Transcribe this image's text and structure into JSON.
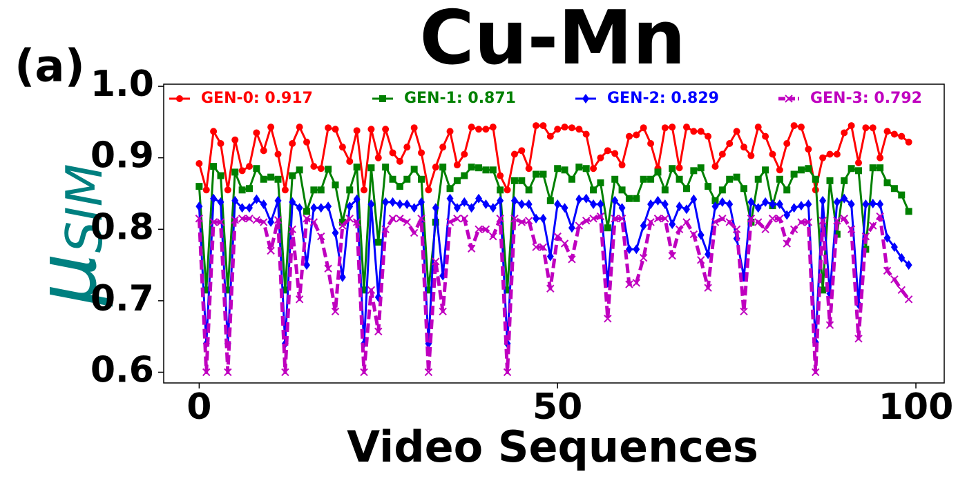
{
  "chart_data": {
    "type": "line",
    "title": "Cu-Mn",
    "panel_label": "(a)",
    "xlabel": "Video Sequences",
    "ylabel": {
      "symbol": "μ",
      "subscript": "SIM",
      "color": "#008080"
    },
    "x": [
      0,
      1,
      2,
      3,
      4,
      5,
      6,
      7,
      8,
      9,
      10,
      11,
      12,
      13,
      14,
      15,
      16,
      17,
      18,
      19,
      20,
      21,
      22,
      23,
      24,
      25,
      26,
      27,
      28,
      29,
      30,
      31,
      32,
      33,
      34,
      35,
      36,
      37,
      38,
      39,
      40,
      41,
      42,
      43,
      44,
      45,
      46,
      47,
      48,
      49,
      50,
      51,
      52,
      53,
      54,
      55,
      56,
      57,
      58,
      59,
      60,
      61,
      62,
      63,
      64,
      65,
      66,
      67,
      68,
      69,
      70,
      71,
      72,
      73,
      74,
      75,
      76,
      77,
      78,
      79,
      80,
      81,
      82,
      83,
      84,
      85,
      86,
      87,
      88,
      89,
      90,
      91,
      92,
      93,
      94,
      95,
      96,
      97,
      98,
      99
    ],
    "xlim": [
      -4.95,
      103.95
    ],
    "xticks": [
      0,
      50,
      100
    ],
    "ylim": [
      0.585,
      1.003
    ],
    "yticks": [
      0.6,
      0.7,
      0.8,
      0.9,
      {
        "value": 1.0,
        "label": "1.0"
      }
    ],
    "series": [
      {
        "name": "GEN-0: 0.917",
        "color": "#ff0000",
        "marker": "circle",
        "dashed": false,
        "values": [
          0.892,
          0.855,
          0.937,
          0.92,
          0.855,
          0.925,
          0.882,
          0.888,
          0.935,
          0.91,
          0.943,
          0.905,
          0.855,
          0.92,
          0.943,
          0.922,
          0.888,
          0.885,
          0.942,
          0.94,
          0.915,
          0.895,
          0.938,
          0.855,
          0.94,
          0.9,
          0.94,
          0.907,
          0.895,
          0.915,
          0.942,
          0.907,
          0.855,
          0.887,
          0.915,
          0.937,
          0.89,
          0.905,
          0.943,
          0.94,
          0.94,
          0.943,
          0.875,
          0.855,
          0.905,
          0.91,
          0.885,
          0.945,
          0.945,
          0.93,
          0.94,
          0.943,
          0.942,
          0.94,
          0.933,
          0.885,
          0.9,
          0.91,
          0.906,
          0.89,
          0.93,
          0.932,
          0.942,
          0.92,
          0.885,
          0.942,
          0.943,
          0.886,
          0.943,
          0.937,
          0.937,
          0.93,
          0.888,
          0.905,
          0.92,
          0.937,
          0.915,
          0.903,
          0.943,
          0.93,
          0.905,
          0.883,
          0.92,
          0.945,
          0.943,
          0.912,
          0.855,
          0.9,
          0.905,
          0.905,
          0.935,
          0.945,
          0.893,
          0.942,
          0.942,
          0.9,
          0.937,
          0.933,
          0.93,
          0.922
        ]
      },
      {
        "name": "GEN-1: 0.871",
        "color": "#008000",
        "marker": "square",
        "dashed": false,
        "values": [
          0.86,
          0.715,
          0.888,
          0.875,
          0.715,
          0.88,
          0.855,
          0.857,
          0.885,
          0.87,
          0.873,
          0.87,
          0.715,
          0.875,
          0.883,
          0.825,
          0.855,
          0.855,
          0.884,
          0.862,
          0.81,
          0.855,
          0.887,
          0.715,
          0.886,
          0.782,
          0.887,
          0.87,
          0.86,
          0.87,
          0.884,
          0.87,
          0.715,
          0.81,
          0.887,
          0.857,
          0.868,
          0.875,
          0.887,
          0.886,
          0.883,
          0.883,
          0.855,
          0.715,
          0.868,
          0.868,
          0.855,
          0.877,
          0.877,
          0.84,
          0.885,
          0.883,
          0.87,
          0.887,
          0.885,
          0.855,
          0.865,
          0.802,
          0.87,
          0.855,
          0.843,
          0.843,
          0.87,
          0.87,
          0.88,
          0.855,
          0.885,
          0.87,
          0.857,
          0.882,
          0.886,
          0.86,
          0.84,
          0.855,
          0.87,
          0.873,
          0.857,
          0.81,
          0.87,
          0.883,
          0.833,
          0.87,
          0.855,
          0.877,
          0.883,
          0.885,
          0.87,
          0.715,
          0.868,
          0.793,
          0.868,
          0.885,
          0.882,
          0.772,
          0.886,
          0.886,
          0.865,
          0.857,
          0.848,
          0.825
        ]
      },
      {
        "name": "GEN-2: 0.829",
        "color": "#0000ff",
        "marker": "diamond",
        "dashed": false,
        "values": [
          0.832,
          0.64,
          0.843,
          0.838,
          0.64,
          0.84,
          0.83,
          0.83,
          0.842,
          0.835,
          0.81,
          0.84,
          0.64,
          0.838,
          0.83,
          0.75,
          0.83,
          0.83,
          0.832,
          0.795,
          0.733,
          0.832,
          0.842,
          0.64,
          0.835,
          0.705,
          0.838,
          0.838,
          0.835,
          0.835,
          0.83,
          0.838,
          0.64,
          0.83,
          0.735,
          0.843,
          0.83,
          0.838,
          0.83,
          0.843,
          0.835,
          0.83,
          0.84,
          0.64,
          0.84,
          0.835,
          0.835,
          0.815,
          0.815,
          0.762,
          0.835,
          0.83,
          0.802,
          0.842,
          0.843,
          0.835,
          0.835,
          0.725,
          0.84,
          0.83,
          0.772,
          0.772,
          0.805,
          0.835,
          0.84,
          0.835,
          0.807,
          0.832,
          0.828,
          0.842,
          0.792,
          0.765,
          0.832,
          0.838,
          0.835,
          0.787,
          0.733,
          0.838,
          0.83,
          0.838,
          0.835,
          0.835,
          0.82,
          0.83,
          0.833,
          0.835,
          0.642,
          0.84,
          0.71,
          0.838,
          0.843,
          0.835,
          0.695,
          0.835,
          0.836,
          0.835,
          0.788,
          0.775,
          0.76,
          0.75
        ]
      },
      {
        "name": "GEN-3: 0.792",
        "color": "#bf00bf",
        "marker": "x",
        "dashed": true,
        "values": [
          0.815,
          0.6,
          0.81,
          0.81,
          0.6,
          0.813,
          0.815,
          0.815,
          0.813,
          0.81,
          0.77,
          0.813,
          0.6,
          0.8,
          0.702,
          0.815,
          0.81,
          0.79,
          0.745,
          0.685,
          0.805,
          0.815,
          0.81,
          0.6,
          0.715,
          0.657,
          0.8,
          0.815,
          0.815,
          0.81,
          0.795,
          0.815,
          0.6,
          0.755,
          0.685,
          0.81,
          0.815,
          0.815,
          0.773,
          0.8,
          0.8,
          0.79,
          0.815,
          0.6,
          0.815,
          0.81,
          0.812,
          0.775,
          0.775,
          0.717,
          0.79,
          0.78,
          0.758,
          0.805,
          0.812,
          0.815,
          0.818,
          0.675,
          0.815,
          0.815,
          0.723,
          0.725,
          0.76,
          0.81,
          0.815,
          0.815,
          0.763,
          0.8,
          0.81,
          0.793,
          0.757,
          0.718,
          0.81,
          0.815,
          0.81,
          0.8,
          0.685,
          0.815,
          0.81,
          0.8,
          0.815,
          0.815,
          0.78,
          0.8,
          0.81,
          0.81,
          0.6,
          0.812,
          0.666,
          0.812,
          0.815,
          0.8,
          0.647,
          0.79,
          0.805,
          0.818,
          0.742,
          0.73,
          0.715,
          0.702
        ]
      }
    ]
  }
}
